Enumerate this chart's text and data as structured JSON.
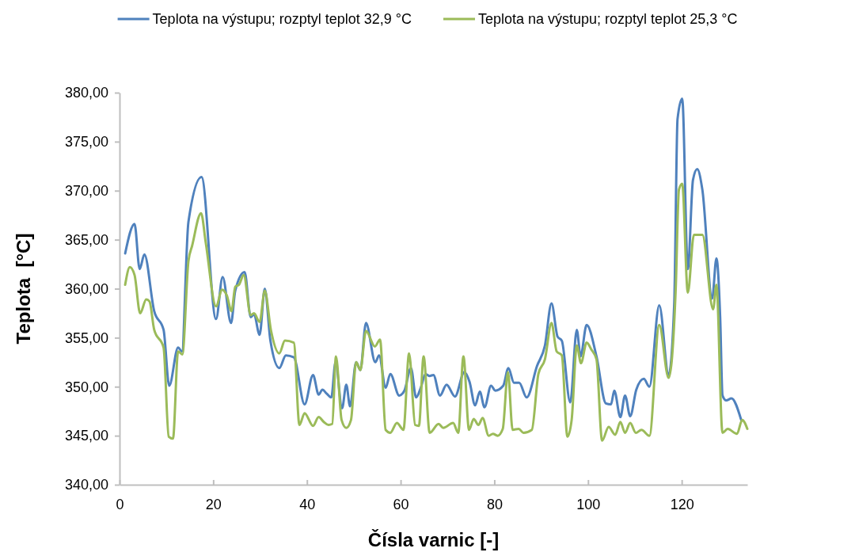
{
  "chart_data": {
    "type": "line",
    "xlabel": "Čísla varnic [-]",
    "ylabel": "Teplota  [°C]",
    "legend": "top",
    "grid": false,
    "marker": "none",
    "line_style": "solid",
    "xlim": [
      0,
      134
    ],
    "xticks": [
      0,
      20,
      40,
      60,
      80,
      100,
      120
    ],
    "ylim": [
      340,
      380
    ],
    "yticks": [
      {
        "value": 340,
        "label": "340,00"
      },
      {
        "value": 345,
        "label": "345,00"
      },
      {
        "value": 350,
        "label": "350,00"
      },
      {
        "value": 355,
        "label": "355,00"
      },
      {
        "value": 360,
        "label": "360,00"
      },
      {
        "value": 365,
        "label": "365,00"
      },
      {
        "value": 370,
        "label": "370,00"
      },
      {
        "value": 375,
        "label": "375,00"
      },
      {
        "value": 380,
        "label": "380,00"
      }
    ],
    "series": [
      {
        "name": "Teplota na výstupu; rozptyl teplot 32,9 °C",
        "color": "#4f81bd",
        "x": [
          1.2,
          3.2,
          4.3,
          5.3,
          7.4,
          9.4,
          10.6,
          12.5,
          13.3,
          14.7,
          17.5,
          20.6,
          22.0,
          23.8,
          24.7,
          26.7,
          28.0,
          28.7,
          29.9,
          31.0,
          32.2,
          34.1,
          35.5,
          37.2,
          39.5,
          41.3,
          42.5,
          43.3,
          44.2,
          45.2,
          46.1,
          47.5,
          48.4,
          49.2,
          50.5,
          51.4,
          52.6,
          54.6,
          55.4,
          56.8,
          57.8,
          59.7,
          60.8,
          62.2,
          63.3,
          64.3,
          65.3,
          66.2,
          67.0,
          68.4,
          69.8,
          71.6,
          73.6,
          74.7,
          75.9,
          76.9,
          77.9,
          79.3,
          80.2,
          81.9,
          83.0,
          84.2,
          85.3,
          86.9,
          89.1,
          90.8,
          92.2,
          93.5,
          94.4,
          96.2,
          97.6,
          98.4,
          99.7,
          101.8,
          103.8,
          104.9,
          105.6,
          106.9,
          107.9,
          109.0,
          110.3,
          111.9,
          113.1,
          115.2,
          117.2,
          118.4,
          119.1,
          120.1,
          121.3,
          122.4,
          123.3,
          124.4,
          126.5,
          127.4,
          128.2,
          128.7,
          129.5,
          130.6,
          132.7
        ],
        "values": [
          363.6,
          366.6,
          362.0,
          363.5,
          357.7,
          355.8,
          350.1,
          354.0,
          353.6,
          366.8,
          371.4,
          356.9,
          361.2,
          356.5,
          359.8,
          361.7,
          357.1,
          357.4,
          355.3,
          360.0,
          354.7,
          351.9,
          353.2,
          353.0,
          348.2,
          351.2,
          349.2,
          349.7,
          349.3,
          348.9,
          352.5,
          347.8,
          350.2,
          348.0,
          352.5,
          351.7,
          356.5,
          352.5,
          353.2,
          349.9,
          351.3,
          349.1,
          349.6,
          351.9,
          348.9,
          349.9,
          351.3,
          351.1,
          351.2,
          349.1,
          350.2,
          349.0,
          351.5,
          350.5,
          348.1,
          349.5,
          347.9,
          350.1,
          349.6,
          350.1,
          351.9,
          350.4,
          350.4,
          348.9,
          352.1,
          354.2,
          358.5,
          355.1,
          354.7,
          348.4,
          355.8,
          353.1,
          356.3,
          353.1,
          348.3,
          348.2,
          349.6,
          346.9,
          349.1,
          347.0,
          349.7,
          350.8,
          350.0,
          358.3,
          351.2,
          358.5,
          377.3,
          379.4,
          362.0,
          371.1,
          372.2,
          370.1,
          359.0,
          363.1,
          357.1,
          349.1,
          348.6,
          348.8,
          346.6
        ]
      },
      {
        "name": "Teplota na výstupu; rozptyl teplot 25,3 °C",
        "color": "#9bbb59",
        "x": [
          1.2,
          2.2,
          3.2,
          4.4,
          5.7,
          6.4,
          7.4,
          9.4,
          10.5,
          11.4,
          12.5,
          13.4,
          14.7,
          15.5,
          17.4,
          18.4,
          20.6,
          21.9,
          22.9,
          23.9,
          24.7,
          25.5,
          26.5,
          28.0,
          28.7,
          29.9,
          31.0,
          32.3,
          34.1,
          35.3,
          37.2,
          38.4,
          39.5,
          41.3,
          42.5,
          43.6,
          44.6,
          45.4,
          46.2,
          47.4,
          48.4,
          49.4,
          50.5,
          51.4,
          52.6,
          54.5,
          55.6,
          56.8,
          57.8,
          59.2,
          60.6,
          61.8,
          63.1,
          63.9,
          64.9,
          66.2,
          68.1,
          69.1,
          71.2,
          72.3,
          73.4,
          74.6,
          75.6,
          76.6,
          77.5,
          78.8,
          79.7,
          80.7,
          81.8,
          82.9,
          83.9,
          85.2,
          86.2,
          88.0,
          89.4,
          90.8,
          92.2,
          93.3,
          94.4,
          95.6,
          96.5,
          97.6,
          98.5,
          99.7,
          100.7,
          101.8,
          103.0,
          104.4,
          105.8,
          106.9,
          107.9,
          109.0,
          110.2,
          111.4,
          113.1,
          115.2,
          117.2,
          118.7,
          119.4,
          120.1,
          121.3,
          122.6,
          124.4,
          126.7,
          127.4,
          128.7,
          129.8,
          131.8,
          132.9,
          134.0
        ],
        "values": [
          360.4,
          362.2,
          361.4,
          357.5,
          358.9,
          358.7,
          355.8,
          354.0,
          344.9,
          344.7,
          353.6,
          353.3,
          362.8,
          364.4,
          367.7,
          364.7,
          358.2,
          359.9,
          359.3,
          357.7,
          360.2,
          360.4,
          361.4,
          357.3,
          357.5,
          356.6,
          359.8,
          355.8,
          353.4,
          354.7,
          354.5,
          346.1,
          347.3,
          346.0,
          346.9,
          346.4,
          346.1,
          346.2,
          353.1,
          346.6,
          345.8,
          346.6,
          352.5,
          351.7,
          355.7,
          354.1,
          354.8,
          345.6,
          345.3,
          346.3,
          345.6,
          353.4,
          346.1,
          346.0,
          353.1,
          345.3,
          346.2,
          345.8,
          346.3,
          345.3,
          353.1,
          345.6,
          346.7,
          346.1,
          346.8,
          345.0,
          345.2,
          345.0,
          345.7,
          351.5,
          345.6,
          345.7,
          345.3,
          345.6,
          351.3,
          352.8,
          356.5,
          353.6,
          353.2,
          344.9,
          346.6,
          354.2,
          352.4,
          354.5,
          353.8,
          352.8,
          344.5,
          345.9,
          345.1,
          346.4,
          345.3,
          346.3,
          345.3,
          345.6,
          345.0,
          356.3,
          350.9,
          359.8,
          370.1,
          370.7,
          359.6,
          365.5,
          365.5,
          357.9,
          360.4,
          345.3,
          345.7,
          345.2,
          346.6,
          345.7
        ]
      }
    ]
  }
}
